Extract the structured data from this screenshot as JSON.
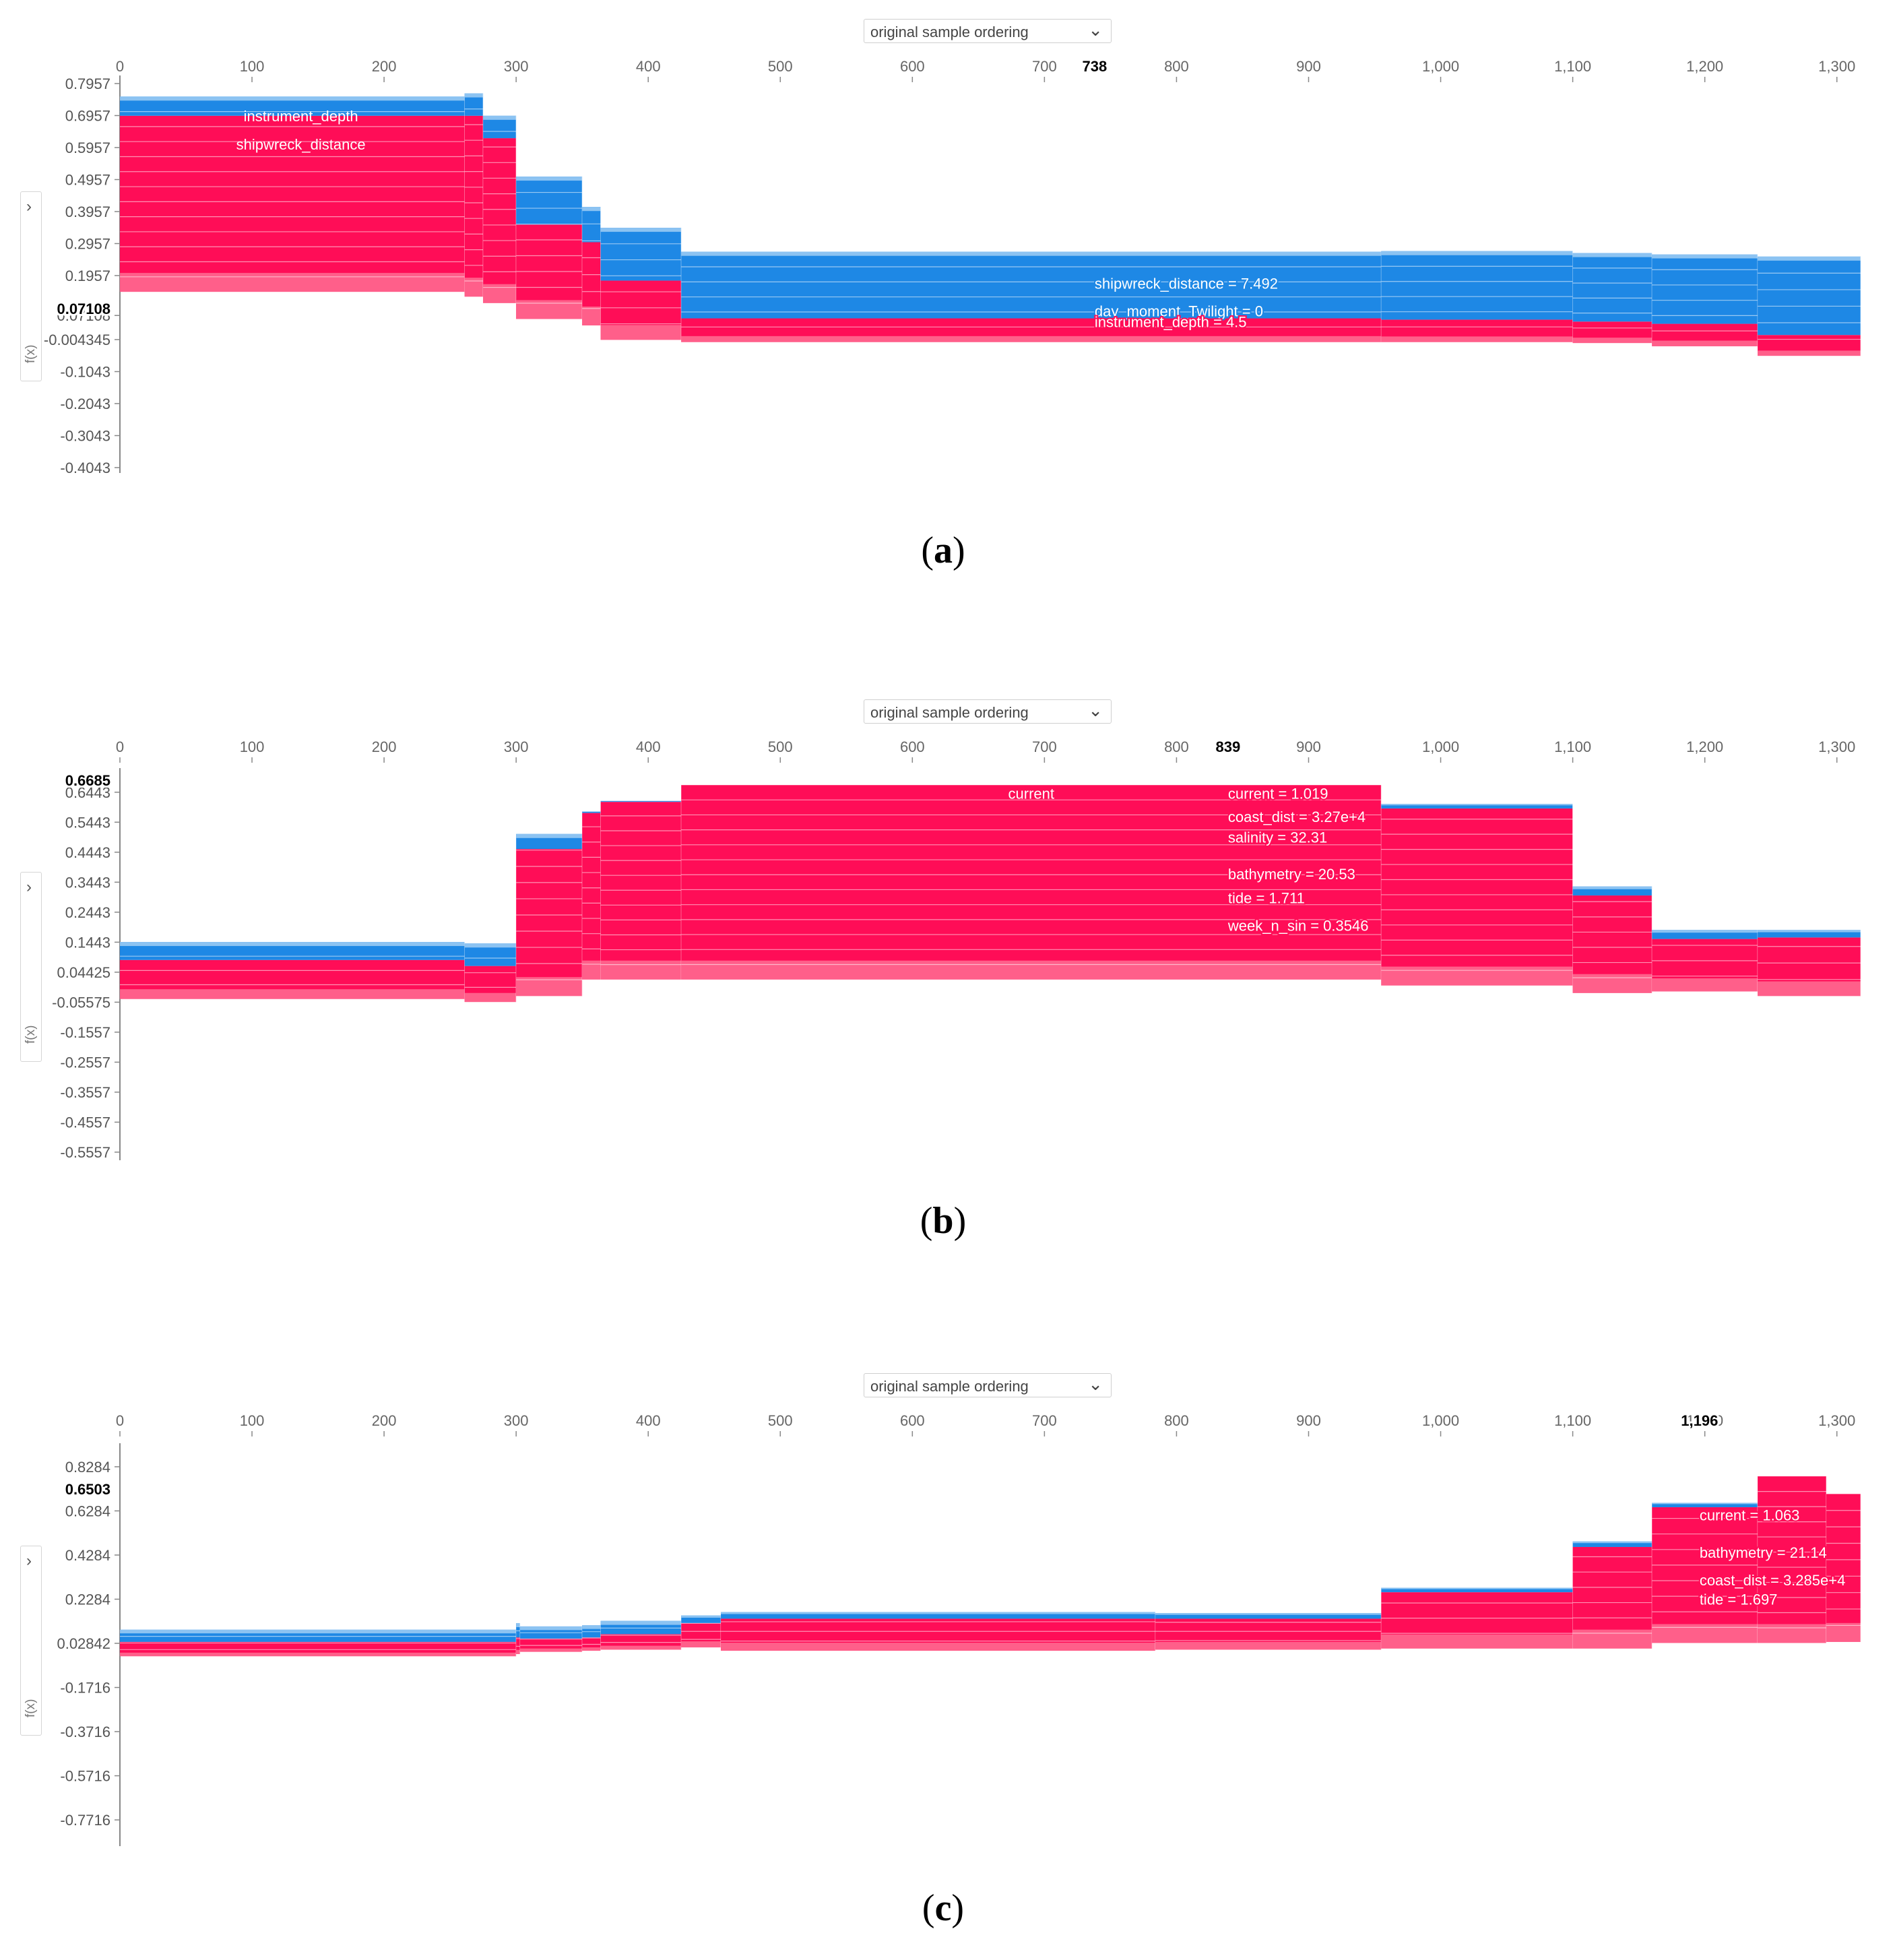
{
  "colors": {
    "positive": "#ff0d57",
    "negative": "#1e88e5",
    "axis": "#888888"
  },
  "icons": {
    "dropdown": "chevron-down-icon",
    "expand": "chevron-right-icon"
  },
  "panels": [
    {
      "id": "a",
      "caption_letter": "a",
      "ordering_label": "original sample ordering",
      "ylabel": "f(x)",
      "marker_label": "738",
      "base_label": "0.07108",
      "chart_data": {
        "type": "area",
        "x_ticks": [
          "0",
          "100",
          "200",
          "300",
          "400",
          "500",
          "600",
          "700",
          "800",
          "900",
          "1,000",
          "1,100",
          "1,200",
          "1,300"
        ],
        "x_range": [
          0,
          1318
        ],
        "y_ticks": [
          "0.7957",
          "0.6957",
          "0.5957",
          "0.4957",
          "0.3957",
          "0.2957",
          "0.1957",
          "0.07108",
          "-0.004345",
          "-0.1043",
          "-0.2043",
          "-0.3043",
          "-0.4043"
        ],
        "y_range": [
          -0.4043,
          0.7957
        ],
        "marker_x": 738,
        "base_value": 0.07108,
        "segments": [
          {
            "x0": 0,
            "x1": 261,
            "lo": 0.145,
            "split": 0.695,
            "hi": 0.755
          },
          {
            "x0": 261,
            "x1": 275,
            "lo": 0.13,
            "split": 0.695,
            "hi": 0.765
          },
          {
            "x0": 275,
            "x1": 300,
            "lo": 0.11,
            "split": 0.625,
            "hi": 0.695
          },
          {
            "x0": 300,
            "x1": 350,
            "lo": 0.06,
            "split": 0.355,
            "hi": 0.505
          },
          {
            "x0": 350,
            "x1": 364,
            "lo": 0.04,
            "split": 0.3,
            "hi": 0.41
          },
          {
            "x0": 364,
            "x1": 425,
            "lo": -0.005,
            "split": 0.18,
            "hi": 0.345
          },
          {
            "x0": 425,
            "x1": 955,
            "lo": -0.012,
            "split": 0.062,
            "hi": 0.27
          },
          {
            "x0": 955,
            "x1": 1100,
            "lo": -0.012,
            "split": 0.058,
            "hi": 0.272
          },
          {
            "x0": 1100,
            "x1": 1160,
            "lo": -0.015,
            "split": 0.052,
            "hi": 0.266
          },
          {
            "x0": 1160,
            "x1": 1240,
            "lo": -0.025,
            "split": 0.045,
            "hi": 0.262
          },
          {
            "x0": 1240,
            "x1": 1318,
            "lo": -0.055,
            "split": 0.01,
            "hi": 0.255
          }
        ],
        "annotations": [
          {
            "text": "instrument_depth",
            "x": 137,
            "y": 0.695,
            "color": "white"
          },
          {
            "text": "shipwreck_distance",
            "x": 137,
            "y": 0.606,
            "color": "white"
          },
          {
            "text": "shipwreck_distance = 7.492",
            "x": 738,
            "y": 0.172,
            "color": "blue"
          },
          {
            "text": "day_moment_Twilight = 0",
            "x": 738,
            "y": 0.085,
            "color": "blue"
          },
          {
            "text": "instrument_depth = 4.5",
            "x": 738,
            "y": 0.052,
            "color": "red"
          }
        ]
      }
    },
    {
      "id": "b",
      "caption_letter": "b",
      "ordering_label": "original sample ordering",
      "ylabel": "f(x)",
      "marker_label": "839",
      "base_label": "0.6685",
      "chart_data": {
        "type": "area",
        "x_ticks": [
          "0",
          "100",
          "200",
          "300",
          "400",
          "500",
          "600",
          "700",
          "800",
          "900",
          "1,000",
          "1,100",
          "1,200",
          "1,300"
        ],
        "x_range": [
          0,
          1318
        ],
        "y_ticks": [
          "0.6443",
          "0.5443",
          "0.4443",
          "0.3443",
          "0.2443",
          "0.1443",
          "0.04425",
          "-0.05575",
          "-0.1557",
          "-0.2557",
          "-0.3557",
          "-0.4557",
          "-0.5557"
        ],
        "y_range": [
          -0.5557,
          0.6685
        ],
        "marker_x": 839,
        "base_value": 0.6685,
        "segments": [
          {
            "x0": 0,
            "x1": 261,
            "lo": -0.045,
            "split": 0.085,
            "hi": 0.145
          },
          {
            "x0": 261,
            "x1": 300,
            "lo": -0.055,
            "split": 0.065,
            "hi": 0.14
          },
          {
            "x0": 300,
            "x1": 350,
            "lo": -0.035,
            "split": 0.455,
            "hi": 0.505
          },
          {
            "x0": 350,
            "x1": 364,
            "lo": 0.02,
            "split": 0.575,
            "hi": 0.58
          },
          {
            "x0": 364,
            "x1": 425,
            "lo": 0.02,
            "split": 0.612,
            "hi": 0.615
          },
          {
            "x0": 425,
            "x1": 955,
            "lo": 0.02,
            "split": 0.668,
            "hi": 0.6685
          },
          {
            "x0": 955,
            "x1": 1100,
            "lo": 0.0,
            "split": 0.59,
            "hi": 0.605
          },
          {
            "x0": 1100,
            "x1": 1160,
            "lo": -0.025,
            "split": 0.3,
            "hi": 0.33
          },
          {
            "x0": 1160,
            "x1": 1240,
            "lo": -0.02,
            "split": 0.155,
            "hi": 0.185
          },
          {
            "x0": 1240,
            "x1": 1318,
            "lo": -0.035,
            "split": 0.16,
            "hi": 0.185
          }
        ],
        "annotations": [
          {
            "text": "current",
            "x": 690,
            "y": 0.64,
            "color": "white"
          },
          {
            "text": "current = 1.019",
            "x": 839,
            "y": 0.64,
            "color": "red"
          },
          {
            "text": "coast_dist = 3.27e+4",
            "x": 839,
            "y": 0.563,
            "color": "red"
          },
          {
            "text": "salinity = 32.31",
            "x": 839,
            "y": 0.494,
            "color": "red"
          },
          {
            "text": "bathymetry = 20.53",
            "x": 839,
            "y": 0.372,
            "color": "red"
          },
          {
            "text": "tide = 1.711",
            "x": 839,
            "y": 0.292,
            "color": "red"
          },
          {
            "text": "week_n_sin = 0.3546",
            "x": 839,
            "y": 0.2,
            "color": "red"
          }
        ]
      }
    },
    {
      "id": "c",
      "caption_letter": "c",
      "ordering_label": "original sample ordering",
      "ylabel": "f(x)",
      "marker_label": "1,196",
      "base_label": "0.6503",
      "chart_data": {
        "type": "area",
        "x_ticks": [
          "0",
          "100",
          "200",
          "300",
          "400",
          "500",
          "600",
          "700",
          "800",
          "900",
          "1,000",
          "1,100",
          "1,200",
          "1,300"
        ],
        "x_range": [
          0,
          1318
        ],
        "y_ticks": [
          "0.8284",
          "0.6284",
          "0.4284",
          "0.2284",
          "0.02842",
          "-0.1716",
          "-0.3716",
          "-0.5716",
          "-0.7716"
        ],
        "y_range": [
          -0.8416,
          0.8984
        ],
        "marker_x": 1196,
        "base_value": 0.6503,
        "segments": [
          {
            "x0": 0,
            "x1": 300,
            "lo": -0.03,
            "split": 0.035,
            "hi": 0.09
          },
          {
            "x0": 300,
            "x1": 303,
            "lo": -0.02,
            "split": 0.055,
            "hi": 0.12
          },
          {
            "x0": 303,
            "x1": 350,
            "lo": -0.01,
            "split": 0.05,
            "hi": 0.105
          },
          {
            "x0": 350,
            "x1": 364,
            "lo": -0.005,
            "split": 0.055,
            "hi": 0.11
          },
          {
            "x0": 364,
            "x1": 425,
            "lo": 0.0,
            "split": 0.07,
            "hi": 0.13
          },
          {
            "x0": 425,
            "x1": 455,
            "lo": 0.01,
            "split": 0.12,
            "hi": 0.155
          },
          {
            "x0": 455,
            "x1": 784,
            "lo": -0.005,
            "split": 0.14,
            "hi": 0.17
          },
          {
            "x0": 784,
            "x1": 955,
            "lo": 0.0,
            "split": 0.14,
            "hi": 0.165
          },
          {
            "x0": 955,
            "x1": 1100,
            "lo": 0.005,
            "split": 0.26,
            "hi": 0.28
          },
          {
            "x0": 1100,
            "x1": 1160,
            "lo": 0.005,
            "split": 0.465,
            "hi": 0.49
          },
          {
            "x0": 1160,
            "x1": 1240,
            "lo": 0.03,
            "split": 0.645,
            "hi": 0.665
          },
          {
            "x0": 1240,
            "x1": 1292,
            "lo": 0.03,
            "split": 0.785,
            "hi": 0.785
          },
          {
            "x0": 1292,
            "x1": 1318,
            "lo": 0.035,
            "split": 0.705,
            "hi": 0.705
          }
        ],
        "annotations": [
          {
            "text": "current = 1.063",
            "x": 1196,
            "y": 0.61,
            "color": "red"
          },
          {
            "text": "bathymetry = 21.14",
            "x": 1196,
            "y": 0.44,
            "color": "red"
          },
          {
            "text": "coast_dist = 3.285e+4",
            "x": 1196,
            "y": 0.315,
            "color": "red"
          },
          {
            "text": "tide = 1.697",
            "x": 1196,
            "y": 0.228,
            "color": "red"
          }
        ]
      }
    }
  ]
}
